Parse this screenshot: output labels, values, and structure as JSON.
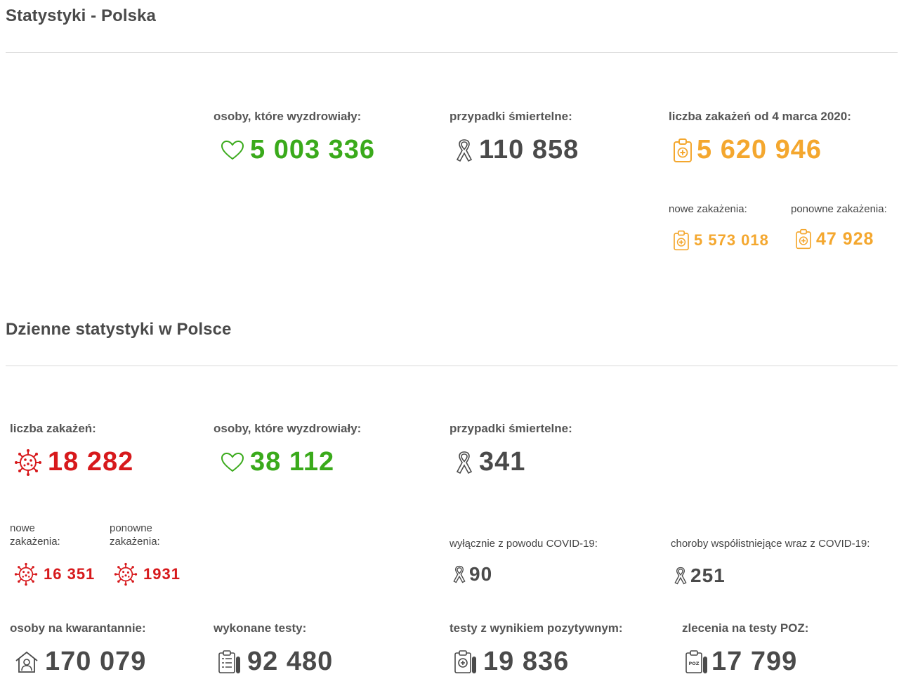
{
  "section1": {
    "title": "Statystyki - Polska",
    "recovered": {
      "label": "osoby, które wyzdrowiały:",
      "value": "5 003 336",
      "icon": "heart-icon"
    },
    "deaths": {
      "label": "przypadki śmiertelne:",
      "value": "110 858",
      "icon": "ribbon-icon"
    },
    "infections": {
      "label": "liczba zakażeń od 4 marca 2020:",
      "value": "5 620 946",
      "icon": "clipboard-plus-icon"
    },
    "new_infections": {
      "label": "nowe zakażenia:",
      "value": "5 573 018",
      "icon": "clipboard-plus-icon"
    },
    "reinfections": {
      "label": "ponowne zakażenia:",
      "value": "47 928",
      "icon": "clipboard-plus-icon"
    }
  },
  "section2": {
    "title": "Dzienne statystyki w Polsce",
    "infections": {
      "label": "liczba zakażeń:",
      "value": "18 282",
      "icon": "virus-icon"
    },
    "recovered": {
      "label": "osoby, które wyzdrowiały:",
      "value": "38 112",
      "icon": "heart-icon"
    },
    "deaths": {
      "label": "przypadki śmiertelne:",
      "value": "341",
      "icon": "ribbon-icon"
    },
    "new_infections": {
      "label": "nowe zakażenia:",
      "value": "16 351",
      "icon": "virus-icon"
    },
    "reinfections": {
      "label": "ponowne zakażenia:",
      "value": "1931",
      "icon": "virus-icon"
    },
    "covid_only": {
      "label": "wyłącznie z powodu COVID-19:",
      "value": "90",
      "icon": "ribbon-icon"
    },
    "comorbid": {
      "label": "choroby współistniejące wraz z COVID-19:",
      "value": "251",
      "icon": "ribbon-icon"
    },
    "quarantine": {
      "label": "osoby na kwarantannie:",
      "value": "170 079",
      "icon": "house-person-icon"
    },
    "tests": {
      "label": "wykonane testy:",
      "value": "92 480",
      "icon": "test-clipboard-icon"
    },
    "positive_tests": {
      "label": "testy z wynikiem pozytywnym:",
      "value": "19 836",
      "icon": "positive-test-icon"
    },
    "poz_orders": {
      "label": "zlecenia na testy POZ:",
      "value": "17 799",
      "icon": "poz-test-icon"
    }
  },
  "colors": {
    "green": "#3aaa1b",
    "gray": "#4a4a4a",
    "orange": "#f4a72e",
    "red": "#d7191c"
  }
}
